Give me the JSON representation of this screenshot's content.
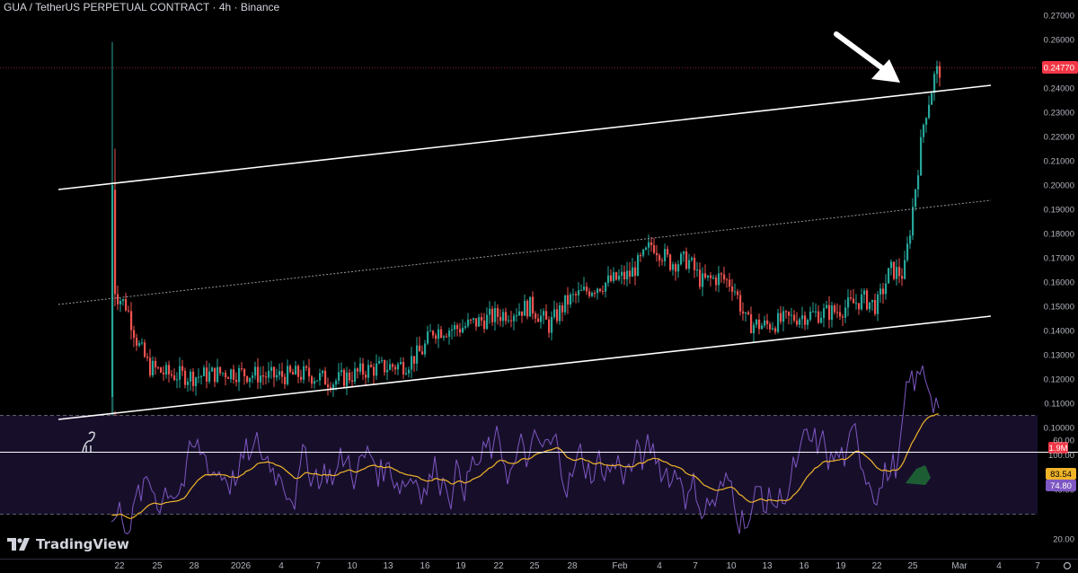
{
  "header": {
    "symbol_title": "GUA / TetherUS PERPETUAL CONTRACT · 4h · Binance"
  },
  "brand": {
    "name": "TradingView",
    "logo_icon": "tradingview-logo-icon"
  },
  "colors": {
    "background": "#000000",
    "up": "#26a69a",
    "down": "#ef5350",
    "price_tag": "#f23645",
    "rsi_line": "#7e57c2",
    "rsi_ma": "#f0b429",
    "channel_line": "#ffffff",
    "axis_text": "#b2b5be"
  },
  "price_axis": {
    "ticks": [
      "0.27000",
      "0.26000",
      "0.25000",
      "0.24000",
      "0.23000",
      "0.22000",
      "0.21000",
      "0.20000",
      "0.19000",
      "0.18000",
      "0.17000",
      "0.16000",
      "0.15000",
      "0.14000",
      "0.13000",
      "0.12000",
      "0.11000",
      "0.10000"
    ],
    "current_price_label": "0.24770",
    "volume_label": "1.9M"
  },
  "rsi_axis": {
    "ticks": [
      "100.00",
      "60.00",
      "40.00",
      "20.00"
    ],
    "rsi_label": "74.80",
    "ma_label": "83.54"
  },
  "date_axis": {
    "labels": [
      "22",
      "25",
      "28",
      "2026",
      "4",
      "7",
      "10",
      "13",
      "16",
      "19",
      "22",
      "25",
      "28",
      "Feb",
      "4",
      "7",
      "10",
      "13",
      "16",
      "19",
      "22",
      "25",
      "Mar",
      "4",
      "7"
    ]
  },
  "chart_data": {
    "type": "candlestick",
    "symbol": "GUA / TetherUS PERPETUAL CONTRACT",
    "timeframe": "4h",
    "exchange": "Binance",
    "y_range": [
      0.1,
      0.27
    ],
    "key_points": [
      {
        "x": "22",
        "close": 0.2,
        "high": 0.259
      },
      {
        "x": "22",
        "close": 0.155
      },
      {
        "x": "25",
        "close": 0.125
      },
      {
        "x": "28",
        "close": 0.122
      },
      {
        "x": "2026",
        "close": 0.123
      },
      {
        "x": "4",
        "close": 0.121
      },
      {
        "x": "7",
        "close": 0.12
      },
      {
        "x": "10",
        "close": 0.124
      },
      {
        "x": "13",
        "close": 0.126
      },
      {
        "x": "16",
        "close": 0.14
      },
      {
        "x": "19",
        "close": 0.142
      },
      {
        "x": "22",
        "close": 0.146
      },
      {
        "x": "25",
        "close": 0.147
      },
      {
        "x": "28",
        "close": 0.156
      },
      {
        "x": "Feb",
        "close": 0.168
      },
      {
        "x": "4",
        "close": 0.176
      },
      {
        "x": "7",
        "close": 0.167
      },
      {
        "x": "10",
        "close": 0.157
      },
      {
        "x": "13",
        "close": 0.142
      },
      {
        "x": "16",
        "close": 0.145
      },
      {
        "x": "19",
        "close": 0.148
      },
      {
        "x": "22",
        "close": 0.165
      },
      {
        "x": "25",
        "close": 0.243
      },
      {
        "x": "25",
        "close": 0.2477
      }
    ],
    "annotations": [
      "ascending channel (upper, middle, lower trendlines)",
      "arrow pointing to breakout above upper channel line"
    ],
    "rsi": {
      "value": 74.8,
      "ma": 83.54,
      "levels": [
        70,
        30
      ]
    },
    "grid": false
  }
}
